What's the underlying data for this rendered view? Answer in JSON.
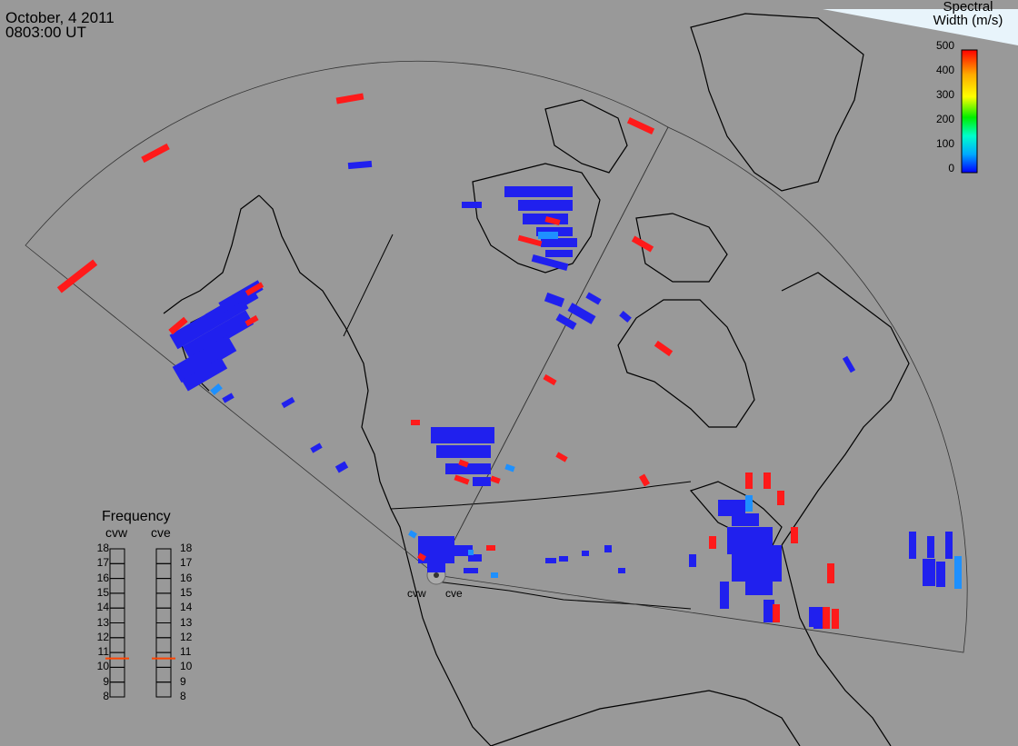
{
  "header": {
    "date": "October, 4 2011",
    "time": "0803:00 UT"
  },
  "colorbar": {
    "title_line1": "Spectral",
    "title_line2": "Width (m/s)",
    "ticks": [
      "500",
      "400",
      "300",
      "200",
      "100",
      "0"
    ],
    "stops": [
      "#0000ff",
      "#00aaff",
      "#00ffcc",
      "#00ee00",
      "#ffff00",
      "#ffaa00",
      "#ff0000"
    ]
  },
  "frequency": {
    "title": "Frequency",
    "stations": [
      "cvw",
      "cve"
    ],
    "levels": [
      "18",
      "17",
      "16",
      "15",
      "14",
      "13",
      "12",
      "11",
      "10",
      "9",
      "8"
    ],
    "cvw_marker_mhz": 10.6,
    "cve_marker_mhz": 10.6,
    "marker_color": "#ff4400"
  },
  "radar_labels": {
    "west": "cvw",
    "east": "cve"
  },
  "colors": {
    "background": "#999999",
    "scatter_low": "#2020ee",
    "scatter_high": "#ff1a1a",
    "scatter_mid": "#1e90ff"
  }
}
